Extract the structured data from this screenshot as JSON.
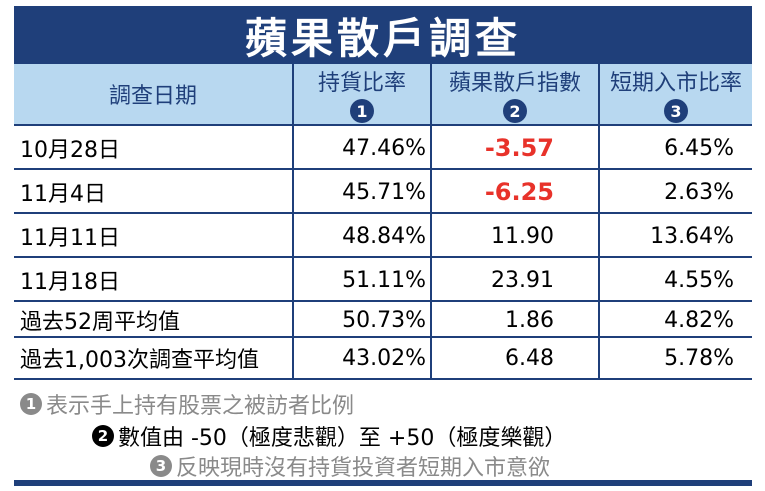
{
  "title": "蘋果散戶調查",
  "columns": [
    {
      "label": "調查日期",
      "marker": ""
    },
    {
      "label": "持貨比率",
      "marker": "1"
    },
    {
      "label": "蘋果散戶指數",
      "marker": "2"
    },
    {
      "label": "短期入市比率",
      "marker": "3"
    }
  ],
  "rows": [
    {
      "date": "10月28日",
      "holding": "47.46%",
      "index": "-3.57",
      "entry": "6.45%",
      "negative": true
    },
    {
      "date": "11月4日",
      "holding": "45.71%",
      "index": "-6.25",
      "entry": "2.63%",
      "negative": true
    },
    {
      "date": "11月11日",
      "holding": "48.84%",
      "index": "11.90",
      "entry": "13.64%",
      "negative": false
    },
    {
      "date": "11月18日",
      "holding": "51.11%",
      "index": "23.91",
      "entry": "4.55%",
      "negative": false
    },
    {
      "date": "過去52周平均值",
      "holding": "50.73%",
      "index": "1.86",
      "entry": "4.82%",
      "negative": false
    },
    {
      "date": "過去1,003次調查平均值",
      "holding": "43.02%",
      "index": "6.48",
      "entry": "5.78%",
      "negative": false
    }
  ],
  "notes": [
    {
      "marker": "1",
      "text": "表示手上持有股票之被訪者比例"
    },
    {
      "marker": "2",
      "text": "數值由 -50（極度悲觀）至 +50（極度樂觀）"
    },
    {
      "marker": "3",
      "text": "反映現時沒有持貨投資者短期入市意欲"
    }
  ],
  "colors": {
    "header_bg": "#b8d8f0",
    "accent": "#1f3f7a",
    "negative": "#e8322a",
    "note_gray": "#8a8a8a"
  }
}
